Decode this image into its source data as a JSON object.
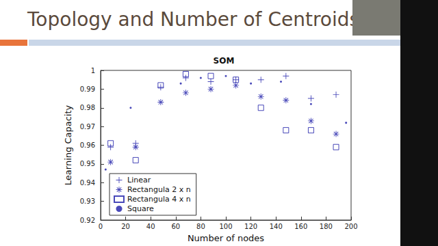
{
  "page": {
    "title": "Topology and Number of Centroids"
  },
  "chart_data": {
    "type": "scatter",
    "title": "SOM",
    "x_label": "Number of nodes",
    "y_label": "Learning Capacity",
    "xlim": [
      0,
      200
    ],
    "xticks": [
      0,
      20,
      40,
      60,
      80,
      100,
      120,
      140,
      160,
      180,
      200
    ],
    "ylim": [
      0.92,
      1
    ],
    "yticks": [
      0.92,
      0.93,
      0.94,
      0.95,
      0.96,
      0.97,
      0.98,
      0.99,
      1
    ],
    "grid": false,
    "legend": "lower left",
    "series": [
      {
        "name": "Linear",
        "color": "#1c1ca8",
        "marker": "plus",
        "x": [
          8,
          28,
          48,
          68,
          88,
          108,
          128,
          148,
          168,
          188
        ],
        "values": [
          0.959,
          0.961,
          0.991,
          0.996,
          0.994,
          0.995,
          0.995,
          0.997,
          0.985,
          0.987
        ]
      },
      {
        "name": "Rectangula 2 x n",
        "color": "#1c1ca8",
        "marker": "asterisk",
        "x": [
          8,
          28,
          48,
          68,
          88,
          108,
          128,
          148,
          168,
          188
        ],
        "values": [
          0.951,
          0.959,
          0.983,
          0.988,
          0.99,
          0.992,
          0.986,
          0.984,
          0.973,
          0.966
        ]
      },
      {
        "name": "Rectangula 4 x n",
        "color": "#1c1ca8",
        "marker": "square",
        "x": [
          8,
          28,
          48,
          68,
          88,
          108,
          128,
          148,
          168,
          188
        ],
        "values": [
          0.961,
          0.952,
          0.992,
          0.998,
          0.997,
          0.995,
          0.98,
          0.968,
          0.968,
          0.959
        ]
      },
      {
        "name": "Square",
        "color": "#1c1ca8",
        "marker": "point",
        "x": [
          4,
          24,
          64,
          80,
          100,
          120,
          144,
          168,
          196
        ],
        "values": [
          0.947,
          0.98,
          0.993,
          0.996,
          0.997,
          0.993,
          0.994,
          0.982,
          0.972
        ]
      }
    ]
  }
}
